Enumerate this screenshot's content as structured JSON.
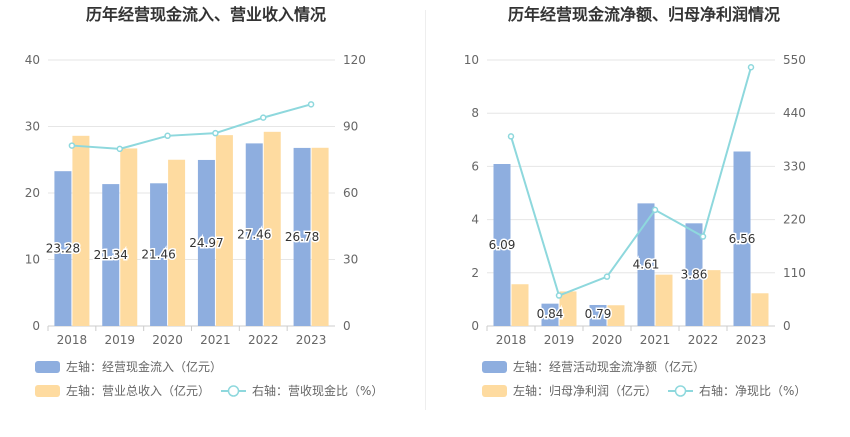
{
  "colors": {
    "bar_left": "#8eaedf",
    "bar_right": "#fedba0",
    "line": "#8ed8dd",
    "grid": "#e6e6e6",
    "axis_text": "#666666",
    "title": "#333333"
  },
  "chart_data": [
    {
      "type": "bar",
      "title": "历年经营现金流入、营业收入情况",
      "categories": [
        "2018",
        "2019",
        "2020",
        "2021",
        "2022",
        "2023"
      ],
      "y_left": {
        "ticks": [
          "0",
          "10",
          "20",
          "30",
          "40"
        ],
        "lim": [
          0,
          40
        ]
      },
      "y_right": {
        "ticks": [
          "0",
          "30",
          "60",
          "90",
          "120"
        ],
        "lim": [
          0,
          120
        ]
      },
      "series": [
        {
          "name": "左轴：经营现金流入（亿元）",
          "axis": "left",
          "kind": "bar",
          "values": [
            23.28,
            21.34,
            21.46,
            24.97,
            27.46,
            26.78
          ],
          "labels": [
            "23.28",
            "21.34",
            "21.46",
            "24.97",
            "27.46",
            "26.78"
          ]
        },
        {
          "name": "左轴：营业总收入（亿元）",
          "axis": "left",
          "kind": "bar",
          "values": [
            28.6,
            26.7,
            25.0,
            28.7,
            29.2,
            26.8
          ]
        },
        {
          "name": "右轴：营收现金比（%）",
          "axis": "right",
          "kind": "line",
          "values": [
            81.4,
            79.9,
            85.8,
            87.0,
            94.0,
            100.0
          ]
        }
      ],
      "grid": true,
      "legend": "bottom"
    },
    {
      "type": "bar",
      "title": "历年经营现金流净额、归母净利润情况",
      "categories": [
        "2018",
        "2019",
        "2020",
        "2021",
        "2022",
        "2023"
      ],
      "y_left": {
        "ticks": [
          "0",
          "2",
          "4",
          "6",
          "8",
          "10"
        ],
        "lim": [
          0,
          10
        ]
      },
      "y_right": {
        "ticks": [
          "0",
          "110",
          "220",
          "330",
          "440",
          "550"
        ],
        "lim": [
          0,
          550
        ]
      },
      "series": [
        {
          "name": "左轴：经营活动现金流净额（亿元）",
          "axis": "left",
          "kind": "bar",
          "values": [
            6.09,
            0.84,
            0.79,
            4.61,
            3.86,
            6.56
          ],
          "labels": [
            "6.09",
            "0.84",
            "0.79",
            "4.61",
            "3.86",
            "6.56"
          ]
        },
        {
          "name": "左轴：归母净利润（亿元）",
          "axis": "left",
          "kind": "bar",
          "values": [
            1.57,
            1.3,
            0.78,
            1.93,
            2.1,
            1.23
          ]
        },
        {
          "name": "右轴：净现比（%）",
          "axis": "right",
          "kind": "line",
          "values": [
            392,
            63,
            102,
            240,
            185,
            535
          ]
        }
      ],
      "grid": true,
      "legend": "bottom"
    }
  ]
}
